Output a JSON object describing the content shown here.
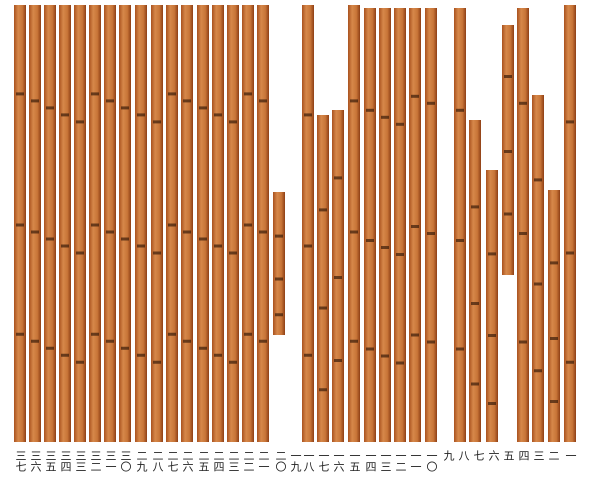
{
  "slip_numbers": [
    "三七",
    "三六",
    "三五",
    "三四",
    "三三",
    "三二",
    "三一",
    "三〇",
    "二九",
    "二八",
    "二七",
    "二六",
    "二五",
    "二四",
    "二三",
    "二二",
    "二一",
    "二〇",
    "一九",
    "一八",
    "一七",
    "一六",
    "一五",
    "一四",
    "一三",
    "一二",
    "一一",
    "一〇",
    "九",
    "八",
    "七",
    "六",
    "五",
    "四",
    "三",
    "二",
    "一"
  ]
}
